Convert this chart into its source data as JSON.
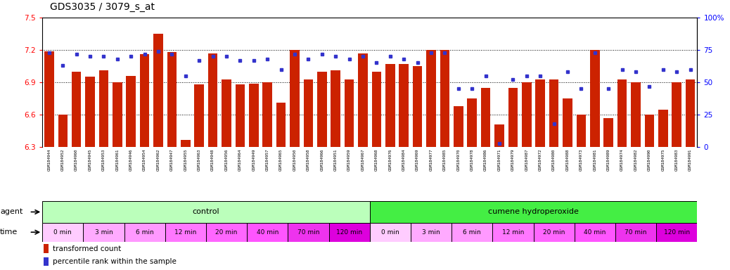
{
  "title": "GDS3035 / 3079_s_at",
  "samples": [
    "GSM184944",
    "GSM184952",
    "GSM184960",
    "GSM184945",
    "GSM184953",
    "GSM184961",
    "GSM184946",
    "GSM184954",
    "GSM184962",
    "GSM184947",
    "GSM184955",
    "GSM184963",
    "GSM184948",
    "GSM184956",
    "GSM184964",
    "GSM184949",
    "GSM184957",
    "GSM184965",
    "GSM184950",
    "GSM184958",
    "GSM184966",
    "GSM184951",
    "GSM184959",
    "GSM184967",
    "GSM184968",
    "GSM184976",
    "GSM184984",
    "GSM184969",
    "GSM184977",
    "GSM184985",
    "GSM184970",
    "GSM184978",
    "GSM184986",
    "GSM184971",
    "GSM184979",
    "GSM184987",
    "GSM184972",
    "GSM184980",
    "GSM184988",
    "GSM184973",
    "GSM184981",
    "GSM184989",
    "GSM184974",
    "GSM184982",
    "GSM184990",
    "GSM184975",
    "GSM184983",
    "GSM184991"
  ],
  "bar_values": [
    7.19,
    6.6,
    7.0,
    6.95,
    7.01,
    6.9,
    6.96,
    7.16,
    7.35,
    7.18,
    6.37,
    6.88,
    7.17,
    6.93,
    6.88,
    6.89,
    6.9,
    6.71,
    7.2,
    6.93,
    7.0,
    7.01,
    6.93,
    7.17,
    7.0,
    7.07,
    7.07,
    7.05,
    7.2,
    7.2,
    6.68,
    6.75,
    6.85,
    6.51,
    6.85,
    6.9,
    6.93,
    6.93,
    6.75,
    6.6,
    7.2,
    6.57,
    6.93,
    6.9,
    6.6,
    6.65,
    6.9,
    6.93
  ],
  "percentile_values": [
    73,
    63,
    72,
    70,
    70,
    68,
    70,
    72,
    74,
    72,
    55,
    67,
    70,
    70,
    67,
    67,
    68,
    60,
    72,
    68,
    72,
    70,
    68,
    70,
    65,
    70,
    68,
    65,
    73,
    73,
    45,
    45,
    55,
    3,
    52,
    55,
    55,
    18,
    58,
    45,
    73,
    45,
    60,
    58,
    47,
    60,
    58,
    60
  ],
  "ylim_left": [
    6.3,
    7.5
  ],
  "ylim_right": [
    0,
    100
  ],
  "yticks_left": [
    6.3,
    6.6,
    6.9,
    7.2,
    7.5
  ],
  "yticks_right": [
    0,
    25,
    50,
    75,
    100
  ],
  "ytick_labels_right": [
    "0",
    "25",
    "50",
    "75",
    "100%"
  ],
  "bar_color": "#cc2200",
  "dot_color": "#3333cc",
  "agent_control_color": "#bbffbb",
  "agent_treatment_color": "#44ee44",
  "time_colors": [
    "#ffccff",
    "#ffaaff",
    "#ff99ff",
    "#ff77ff",
    "#ff66ff",
    "#ff55ff",
    "#ee33ee",
    "#dd00dd"
  ],
  "background_color": "#ffffff",
  "sample_bg_color": "#dddddd",
  "legend_bar": "transformed count",
  "legend_dot": "percentile rank within the sample"
}
